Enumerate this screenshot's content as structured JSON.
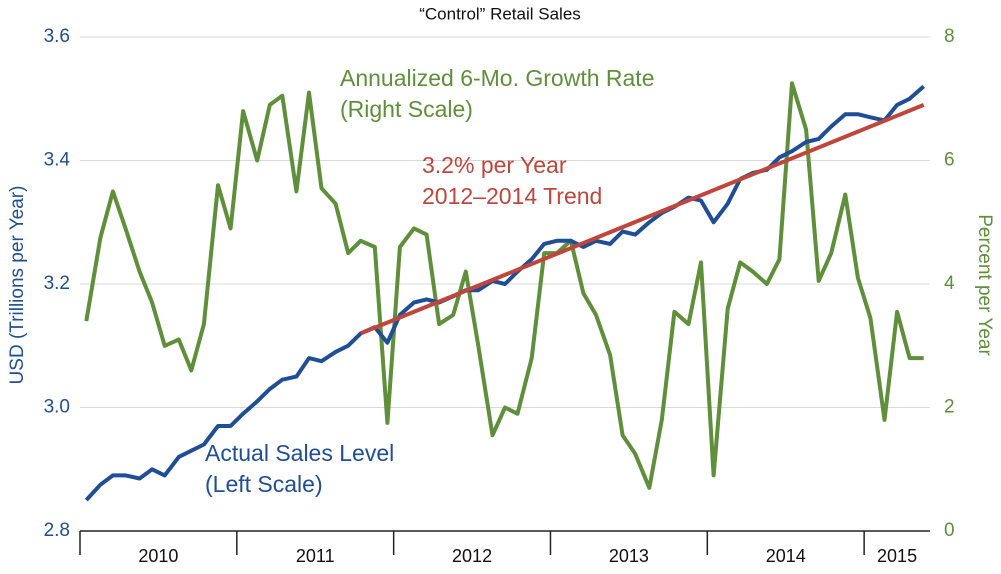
{
  "chart_data": {
    "type": "line",
    "title": "“Control” Retail Sales",
    "ylabel": "USD (Trillions per Year)",
    "y2label": "Percent per Year",
    "x": [
      2010.04,
      2010.13,
      2010.21,
      2010.29,
      2010.38,
      2010.46,
      2010.54,
      2010.63,
      2010.71,
      2010.79,
      2010.88,
      2010.96,
      2011.04,
      2011.13,
      2011.21,
      2011.29,
      2011.38,
      2011.46,
      2011.54,
      2011.63,
      2011.71,
      2011.79,
      2011.88,
      2011.96,
      2012.04,
      2012.13,
      2012.21,
      2012.29,
      2012.38,
      2012.46,
      2012.54,
      2012.63,
      2012.71,
      2012.79,
      2012.88,
      2012.96,
      2013.04,
      2013.13,
      2013.21,
      2013.29,
      2013.38,
      2013.46,
      2013.54,
      2013.63,
      2013.71,
      2013.79,
      2013.88,
      2013.96,
      2014.04,
      2014.13,
      2014.21,
      2014.29,
      2014.38,
      2014.46,
      2014.54,
      2014.63,
      2014.71,
      2014.79,
      2014.88,
      2014.96,
      2015.04,
      2015.13,
      2015.21,
      2015.29,
      2015.38
    ],
    "xlim": [
      2010,
      2015.42
    ],
    "xticks": [
      2010,
      2011,
      2012,
      2013,
      2014,
      2015
    ],
    "ylim": [
      2.8,
      3.6
    ],
    "yticks": [
      2.8,
      {
        "value": 3,
        "label": "3.0"
      },
      3.2,
      3.4,
      3.6
    ],
    "y2lim": [
      0,
      8
    ],
    "y2ticks": [
      0,
      2,
      4,
      6,
      8
    ],
    "grid": true,
    "series": [
      {
        "color": "#1f4e96",
        "values": [
          2.85,
          2.875,
          2.89,
          2.89,
          2.885,
          2.9,
          2.89,
          2.92,
          2.93,
          2.94,
          2.97,
          2.97,
          2.99,
          3.01,
          3.03,
          3.045,
          3.05,
          3.08,
          3.075,
          3.09,
          3.1,
          3.12,
          3.13,
          3.105,
          3.15,
          3.17,
          3.175,
          3.17,
          3.18,
          3.19,
          3.19,
          3.205,
          3.2,
          3.22,
          3.24,
          3.265,
          3.27,
          3.27,
          3.26,
          3.27,
          3.265,
          3.285,
          3.28,
          3.3,
          3.315,
          3.325,
          3.34,
          3.335,
          3.3,
          3.33,
          3.37,
          3.38,
          3.385,
          3.405,
          3.415,
          3.43,
          3.435,
          3.455,
          3.475,
          3.475,
          3.47,
          3.465,
          3.49,
          3.5,
          3.52
        ]
      },
      {
        "color": "#5f8f3a",
        "axis": "y2",
        "values": [
          3.4,
          4.75,
          5.5,
          4.9,
          4.2,
          3.7,
          3.0,
          3.1,
          2.6,
          3.35,
          5.6,
          4.9,
          6.8,
          6.0,
          6.9,
          7.05,
          5.5,
          7.1,
          5.55,
          5.3,
          4.5,
          4.7,
          4.6,
          1.75,
          4.6,
          4.9,
          4.8,
          3.35,
          3.5,
          4.2,
          3.0,
          1.55,
          2.0,
          1.9,
          2.8,
          4.5,
          4.5,
          4.7,
          3.85,
          3.5,
          2.85,
          1.55,
          1.25,
          0.7,
          1.8,
          3.55,
          3.35,
          4.35,
          0.9,
          3.6,
          4.35,
          4.2,
          4.0,
          4.4,
          7.25,
          6.5,
          4.05,
          4.5,
          5.45,
          4.1,
          3.45,
          1.8,
          3.55,
          2.8,
          2.8
        ]
      },
      {
        "color": "#c0463c",
        "x": [
          2011.79,
          2015.38
        ],
        "values": [
          3.12,
          3.49
        ]
      }
    ],
    "annotations": [
      {
        "lines": [
          "Annualized 6-Mo. Growth Rate",
          "(Right Scale)"
        ],
        "color": "#5f8f3a"
      },
      {
        "lines": [
          "3.2% per Year",
          "2012–2014 Trend"
        ],
        "color": "#c0463c"
      },
      {
        "lines": [
          "Actual Sales Level",
          "(Left Scale)"
        ],
        "color": "#1f4e96"
      }
    ]
  }
}
